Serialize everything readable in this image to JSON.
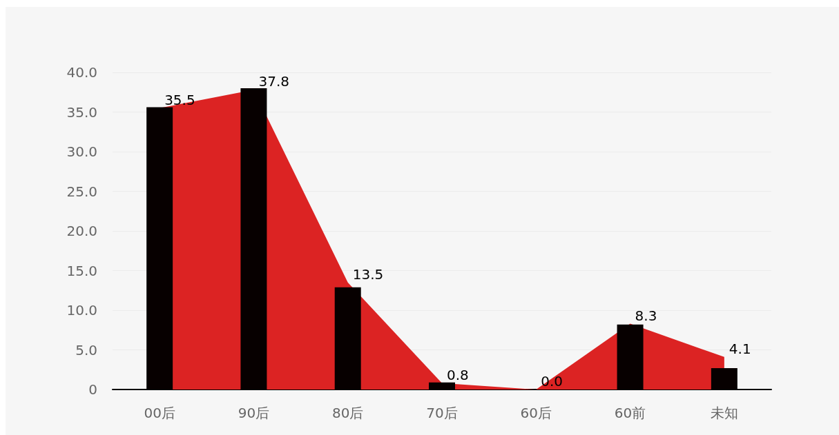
{
  "chart_data": {
    "type": "bar",
    "categories": [
      "00后",
      "90后",
      "80后",
      "70后",
      "60后",
      "60前",
      "未知"
    ],
    "series": [
      {
        "type": "area",
        "color": "#dc2323",
        "values": [
          35.5,
          37.8,
          13.5,
          0.8,
          0.0,
          8.3,
          4.1
        ],
        "value_labels": [
          "35.5",
          "37.8",
          "13.5",
          "0.8",
          "0.0",
          "8.3",
          "4.1"
        ]
      },
      {
        "color": "#070000",
        "values": [
          35.6,
          38.0,
          12.9,
          0.9,
          0,
          8.2,
          2.7
        ]
      }
    ],
    "ylim": [
      0,
      40
    ],
    "yticks": [
      0,
      {
        "value": 5,
        "label": "5.0"
      },
      {
        "value": 10,
        "label": "10.0"
      },
      {
        "value": 15,
        "label": "15.0"
      },
      {
        "value": 20,
        "label": "20.0"
      },
      {
        "value": 25,
        "label": "25.0"
      },
      {
        "value": 30,
        "label": "30.0"
      },
      {
        "value": 35,
        "label": "35.0"
      },
      {
        "value": 40,
        "label": "40.0"
      }
    ],
    "grid": "y"
  }
}
